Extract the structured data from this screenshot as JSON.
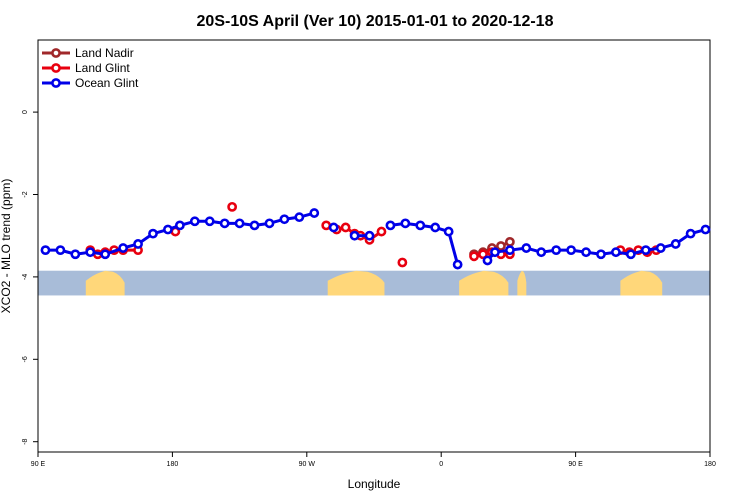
{
  "chart_data": {
    "type": "line",
    "title": "20S-10S April (Ver 10)   2015-01-01 to 2020-12-18",
    "xlabel": "Longitude",
    "ylabel": "XCO2 - MLO trend (ppm)",
    "xlim": [
      90,
      540
    ],
    "ylim": [
      -8.25,
      1.75
    ],
    "x_ticks": [
      {
        "value": 90,
        "label": "90 E"
      },
      {
        "value": 180,
        "label": "180"
      },
      {
        "value": 270,
        "label": "90 W"
      },
      {
        "value": 360,
        "label": "0"
      },
      {
        "value": 450,
        "label": "90 E"
      },
      {
        "value": 540,
        "label": "180"
      }
    ],
    "y_ticks": [
      {
        "value": 0,
        "label": "0"
      },
      {
        "value": -2,
        "label": "-2"
      },
      {
        "value": -4,
        "label": "-4"
      },
      {
        "value": -6,
        "label": "-6"
      },
      {
        "value": -8,
        "label": "-8"
      }
    ],
    "grid": false,
    "legend_position": "top-left",
    "map_strip": {
      "y_top": -3.85,
      "y_bottom": -4.45,
      "ocean_color": "#a8bcd8",
      "land_color": "#ffd77a",
      "land_segments": [
        [
          122,
          148
        ],
        [
          284,
          322
        ],
        [
          372,
          405
        ],
        [
          411,
          417
        ],
        [
          480,
          508
        ]
      ]
    },
    "series": [
      {
        "name": "Land Nadir",
        "color": "#a0282a",
        "x": [
          382,
          388,
          394,
          400,
          406
        ],
        "y": [
          -3.45,
          -3.4,
          -3.3,
          -3.25,
          -3.15
        ]
      },
      {
        "name": "Land Glint",
        "color": "#e8000f",
        "x": [
          125,
          130,
          135,
          141,
          147,
          157,
          182,
          220,
          283,
          290,
          296,
          302,
          306,
          312,
          320,
          334,
          382,
          388,
          394,
          400,
          406,
          480,
          486,
          492,
          498,
          504
        ],
        "y": [
          -3.35,
          -3.45,
          -3.4,
          -3.35,
          -3.35,
          -3.35,
          -2.9,
          -2.3,
          -2.75,
          -2.85,
          -2.8,
          -2.95,
          -3.0,
          -3.1,
          -2.9,
          -3.65,
          -3.5,
          -3.45,
          -3.4,
          -3.45,
          -3.45,
          -3.35,
          -3.4,
          -3.35,
          -3.4,
          -3.35
        ]
      },
      {
        "name": "Ocean Glint",
        "color": "#0000e8",
        "x": [
          95,
          105,
          115,
          125,
          135,
          147,
          157,
          167,
          177,
          185,
          195,
          205,
          215,
          225,
          235,
          245,
          255,
          265,
          275,
          288,
          302,
          312,
          326,
          336,
          346,
          356,
          365,
          371,
          391,
          396,
          406,
          417,
          427,
          437,
          447,
          457,
          467,
          477,
          487,
          497,
          507,
          517,
          527,
          537
        ],
        "y": [
          -3.35,
          -3.35,
          -3.45,
          -3.4,
          -3.45,
          -3.3,
          -3.2,
          -2.95,
          -2.85,
          -2.75,
          -2.65,
          -2.65,
          -2.7,
          -2.7,
          -2.75,
          -2.7,
          -2.6,
          -2.55,
          -2.45,
          -2.8,
          -3.0,
          -3.0,
          -2.75,
          -2.7,
          -2.75,
          -2.8,
          -2.9,
          -3.7,
          -3.6,
          -3.4,
          -3.35,
          -3.3,
          -3.4,
          -3.35,
          -3.35,
          -3.4,
          -3.45,
          -3.4,
          -3.45,
          -3.35,
          -3.3,
          -3.2,
          -2.95,
          -2.85
        ]
      }
    ]
  }
}
